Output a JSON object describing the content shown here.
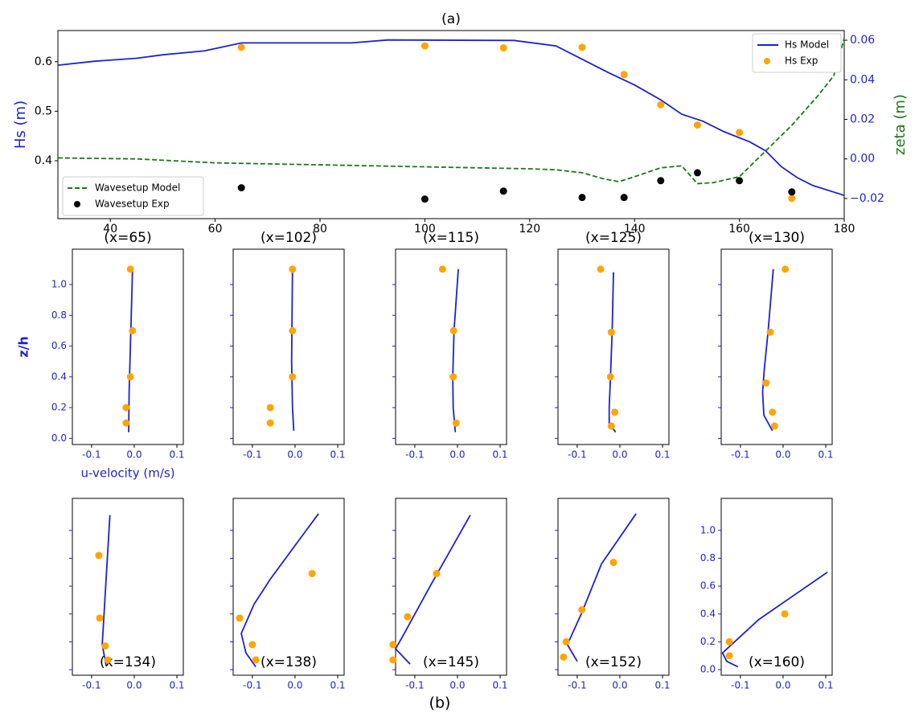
{
  "chart_data": [
    {
      "type": "line",
      "title": "(a)",
      "ylabel": "Hs (m)",
      "y2label": "zeta (m)",
      "xlim": [
        30,
        180
      ],
      "xticks": [
        40,
        60,
        80,
        100,
        120,
        140,
        160,
        180
      ],
      "ylim": [
        0.283,
        0.663
      ],
      "yticks": [
        0.4,
        0.5,
        0.6
      ],
      "y2lim": [
        -0.0302,
        0.0649
      ],
      "y2ticks": [
        {
          "value": -0.02,
          "label": "−0.02"
        },
        {
          "value": 0,
          "label": "0.00"
        },
        0.02,
        0.04,
        0.06
      ],
      "ylabel_color": "#1f1fd6",
      "y2label_color": "#1a7a1a",
      "series": [
        {
          "name": "Hs Model",
          "color": "#1f1fd6",
          "mode": "line",
          "legend": "upper right",
          "x": [
            30,
            37,
            45,
            50,
            58,
            65,
            86,
            93,
            117,
            125,
            130,
            135,
            140,
            145,
            149,
            153,
            157,
            162,
            165,
            168,
            171,
            174,
            180
          ],
          "values": [
            0.593,
            0.601,
            0.607,
            0.614,
            0.622,
            0.638,
            0.638,
            0.644,
            0.643,
            0.632,
            0.605,
            0.578,
            0.553,
            0.523,
            0.494,
            0.48,
            0.459,
            0.438,
            0.42,
            0.388,
            0.366,
            0.35,
            0.33
          ]
        },
        {
          "name": "Hs Exp",
          "color": "#ffa500",
          "mode": "dots",
          "legend": "upper right",
          "x": [
            65,
            100,
            115,
            130,
            138,
            145,
            152,
            160,
            170
          ],
          "values": [
            0.629,
            0.632,
            0.628,
            0.629,
            0.574,
            0.513,
            0.472,
            0.457,
            0.324
          ]
        },
        {
          "name": "Wavesetup Model",
          "color": "#1a7a1a",
          "mode": "dashed",
          "axis": "y2",
          "legend": "lower left",
          "x": [
            30,
            45,
            60,
            80,
            100,
            120,
            125,
            130,
            134,
            137,
            140,
            145,
            149,
            152,
            155,
            160,
            165,
            170,
            175,
            178,
            180
          ],
          "values": [
            0.0005,
            0,
            -0.002,
            -0.003,
            -0.004,
            -0.005,
            -0.0055,
            -0.007,
            -0.01,
            -0.0115,
            -0.009,
            -0.0045,
            -0.0035,
            -0.0125,
            -0.012,
            -0.009,
            0.004,
            0.017,
            0.032,
            0.042,
            0.061
          ]
        },
        {
          "name": "Wavesetup Exp",
          "color": "#000000",
          "mode": "dots",
          "axis": "y2",
          "legend": "lower left",
          "x": [
            65,
            100,
            115,
            130,
            138,
            145,
            152,
            160,
            170
          ],
          "values": [
            -0.0146,
            -0.0203,
            -0.0163,
            -0.0195,
            -0.0195,
            -0.011,
            -0.007,
            -0.011,
            -0.0167
          ]
        }
      ]
    },
    {
      "type": "line",
      "title": "(x=65)",
      "xlabel": "u-velocity (m/s)",
      "ylabel": "z/h",
      "show_ytick_labels": true,
      "xlim": [
        -0.145,
        0.115
      ],
      "xticks": [
        -0.1,
        {
          "value": 0,
          "label": "0.0"
        },
        0.1
      ],
      "ylim": [
        -0.04,
        1.23
      ],
      "yticks": [
        {
          "value": 0,
          "label": "0.0"
        },
        0.2,
        0.4,
        0.6,
        0.8,
        {
          "value": 1,
          "label": "1.0"
        }
      ],
      "series": [
        {
          "color": "#1f1fd6",
          "mode": "line",
          "x": [
            -0.013,
            -0.012,
            -0.008,
            -0.004
          ],
          "values": [
            0.04,
            0.3,
            0.7,
            1.1
          ]
        },
        {
          "color": "#ffa500",
          "mode": "dots",
          "x": [
            -0.009,
            -0.004,
            -0.009,
            -0.019,
            -0.019
          ],
          "values": [
            1.1,
            0.7,
            0.4,
            0.2,
            0.1
          ]
        }
      ]
    },
    {
      "type": "line",
      "title": "(x=102)",
      "xlim": [
        -0.145,
        0.115
      ],
      "xticks": [
        -0.1,
        {
          "value": 0,
          "label": "0.0"
        },
        0.1
      ],
      "ylim": [
        -0.04,
        1.23
      ],
      "yticks": [
        {
          "value": 0,
          "label": "0.0"
        },
        0.2,
        0.4,
        0.6,
        0.8,
        {
          "value": 1,
          "label": "1.0"
        }
      ],
      "series": [
        {
          "color": "#1f1fd6",
          "mode": "line",
          "x": [
            -0.003,
            -0.006,
            -0.008,
            -0.006
          ],
          "values": [
            0.05,
            0.2,
            0.5,
            1.1
          ]
        },
        {
          "color": "#ffa500",
          "mode": "dots",
          "x": [
            -0.006,
            -0.006,
            -0.006,
            -0.058,
            -0.058
          ],
          "values": [
            1.1,
            0.7,
            0.4,
            0.2,
            0.1
          ]
        }
      ]
    },
    {
      "type": "line",
      "title": "(x=115)",
      "xlim": [
        -0.145,
        0.115
      ],
      "xticks": [
        -0.1,
        {
          "value": 0,
          "label": "0.0"
        },
        0.1
      ],
      "ylim": [
        -0.04,
        1.23
      ],
      "yticks": [
        {
          "value": 0,
          "label": "0.0"
        },
        0.2,
        0.4,
        0.6,
        0.8,
        {
          "value": 1,
          "label": "1.0"
        }
      ],
      "series": [
        {
          "color": "#1f1fd6",
          "mode": "line",
          "x": [
            -0.005,
            -0.01,
            -0.011,
            -0.008,
            0.002
          ],
          "values": [
            0.04,
            0.2,
            0.4,
            0.7,
            1.1
          ]
        },
        {
          "color": "#ffa500",
          "mode": "dots",
          "x": [
            -0.035,
            -0.009,
            -0.01,
            -0.003
          ],
          "values": [
            1.1,
            0.7,
            0.4,
            0.1
          ]
        }
      ]
    },
    {
      "type": "line",
      "title": "(x=125)",
      "xlim": [
        -0.145,
        0.115
      ],
      "xticks": [
        -0.1,
        {
          "value": 0,
          "label": "0.0"
        },
        0.1
      ],
      "ylim": [
        -0.04,
        1.23
      ],
      "yticks": [
        {
          "value": 0,
          "label": "0.0"
        },
        0.2,
        0.4,
        0.6,
        0.8,
        {
          "value": 1,
          "label": "1.0"
        }
      ],
      "series": [
        {
          "color": "#1f1fd6",
          "mode": "line",
          "x": [
            -0.01,
            -0.025,
            -0.025,
            -0.022,
            -0.018,
            -0.015
          ],
          "values": [
            0.04,
            0.1,
            0.2,
            0.4,
            0.7,
            1.08
          ]
        },
        {
          "color": "#ffa500",
          "mode": "dots",
          "x": [
            -0.045,
            -0.02,
            -0.022,
            -0.012,
            -0.02
          ],
          "values": [
            1.1,
            0.69,
            0.4,
            0.17,
            0.08
          ]
        }
      ]
    },
    {
      "type": "line",
      "title": "(x=130)",
      "xlim": [
        -0.145,
        0.115
      ],
      "xticks": [
        -0.1,
        {
          "value": 0,
          "label": "0.0"
        },
        0.1
      ],
      "ylim": [
        -0.04,
        1.23
      ],
      "yticks": [
        {
          "value": 0,
          "label": "0.0"
        },
        0.2,
        0.4,
        0.6,
        0.8,
        {
          "value": 1,
          "label": "1.0"
        }
      ],
      "series": [
        {
          "color": "#1f1fd6",
          "mode": "line",
          "x": [
            -0.025,
            -0.045,
            -0.048,
            -0.044,
            -0.035,
            -0.023
          ],
          "values": [
            0.05,
            0.15,
            0.3,
            0.45,
            0.7,
            1.1
          ]
        },
        {
          "color": "#ffa500",
          "mode": "dots",
          "x": [
            0.005,
            -0.03,
            -0.04,
            -0.025,
            -0.02
          ],
          "values": [
            1.1,
            0.69,
            0.36,
            0.17,
            0.08
          ]
        }
      ]
    },
    {
      "type": "line",
      "title": "(x=134)",
      "title_position": "bottom",
      "xlim": [
        -0.145,
        0.115
      ],
      "xticks": [
        -0.1,
        {
          "value": 0,
          "label": "0.0"
        },
        0.1
      ],
      "ylim": [
        -0.04,
        1.23
      ],
      "yticks": [
        {
          "value": 0,
          "label": "0.0"
        },
        0.2,
        0.4,
        0.6,
        0.8,
        {
          "value": 1,
          "label": "1.0"
        }
      ],
      "series": [
        {
          "color": "#1f1fd6",
          "mode": "line",
          "x": [
            -0.066,
            -0.075,
            -0.057
          ],
          "values": [
            0.03,
            0.18,
            1.11
          ]
        },
        {
          "color": "#ffa500",
          "mode": "dots",
          "x": [
            -0.083,
            -0.081,
            -0.068,
            -0.062
          ],
          "values": [
            0.82,
            0.37,
            0.17,
            0.07
          ]
        }
      ]
    },
    {
      "type": "line",
      "title": "(x=138)",
      "title_position": "bottom",
      "xlim": [
        -0.145,
        0.115
      ],
      "xticks": [
        -0.1,
        {
          "value": 0,
          "label": "0.0"
        },
        0.1
      ],
      "ylim": [
        -0.04,
        1.23
      ],
      "yticks": [
        {
          "value": 0,
          "label": "0.0"
        },
        0.2,
        0.4,
        0.6,
        0.8,
        {
          "value": 1,
          "label": "1.0"
        }
      ],
      "series": [
        {
          "color": "#1f1fd6",
          "mode": "line",
          "x": [
            -0.092,
            -0.115,
            -0.126,
            -0.096,
            -0.058,
            0.055
          ],
          "values": [
            0.02,
            0.12,
            0.26,
            0.47,
            0.65,
            1.12
          ]
        },
        {
          "color": "#ffa500",
          "mode": "dots",
          "x": [
            0.04,
            -0.13,
            -0.1,
            -0.092
          ],
          "values": [
            0.69,
            0.37,
            0.18,
            0.07
          ]
        }
      ]
    },
    {
      "type": "line",
      "title": "(x=145)",
      "title_position": "bottom",
      "xlim": [
        -0.145,
        0.115
      ],
      "xticks": [
        -0.1,
        {
          "value": 0,
          "label": "0.0"
        },
        0.1
      ],
      "ylim": [
        -0.04,
        1.23
      ],
      "yticks": [
        {
          "value": 0,
          "label": "0.0"
        },
        0.2,
        0.4,
        0.6,
        0.8,
        {
          "value": 1,
          "label": "1.0"
        }
      ],
      "series": [
        {
          "color": "#1f1fd6",
          "mode": "line",
          "x": [
            -0.111,
            -0.145,
            -0.13,
            -0.064,
            0.03
          ],
          "values": [
            0.04,
            0.15,
            0.23,
            0.6,
            1.11
          ]
        },
        {
          "color": "#ffa500",
          "mode": "dots",
          "x": [
            -0.049,
            -0.117,
            -0.151,
            -0.151
          ],
          "values": [
            0.69,
            0.38,
            0.18,
            0.07
          ]
        }
      ]
    },
    {
      "type": "line",
      "title": "(x=152)",
      "title_position": "bottom",
      "xlim": [
        -0.145,
        0.115
      ],
      "xticks": [
        -0.1,
        {
          "value": 0,
          "label": "0.0"
        },
        0.1
      ],
      "ylim": [
        -0.04,
        1.23
      ],
      "yticks": [
        {
          "value": 0,
          "label": "0.0"
        },
        0.2,
        0.4,
        0.6,
        0.8,
        {
          "value": 1,
          "label": "1.0"
        }
      ],
      "series": [
        {
          "color": "#1f1fd6",
          "mode": "line",
          "x": [
            -0.1,
            -0.123,
            -0.089,
            -0.043,
            0.038
          ],
          "values": [
            0.06,
            0.18,
            0.41,
            0.76,
            1.12
          ]
        },
        {
          "color": "#ffa500",
          "mode": "dots",
          "x": [
            -0.015,
            -0.089,
            -0.126,
            -0.132
          ],
          "values": [
            0.77,
            0.43,
            0.2,
            0.09
          ]
        }
      ]
    },
    {
      "type": "line",
      "title": "(x=160)",
      "title_position": "bottom",
      "show_ytick_labels": true,
      "xlim": [
        -0.145,
        0.115
      ],
      "xticks": [
        -0.1,
        {
          "value": 0,
          "label": "0.0"
        },
        0.1
      ],
      "ylim": [
        -0.04,
        1.23
      ],
      "yticks": [
        {
          "value": 0,
          "label": "0.0"
        },
        0.2,
        0.4,
        0.6,
        0.8,
        {
          "value": 1,
          "label": "1.0"
        }
      ],
      "series": [
        {
          "color": "#1f1fd6",
          "mode": "line",
          "x": [
            -0.106,
            -0.132,
            -0.142,
            -0.057,
            0.104
          ],
          "values": [
            0.02,
            0.06,
            0.12,
            0.36,
            0.7
          ]
        },
        {
          "color": "#ffa500",
          "mode": "dots",
          "x": [
            0.004,
            -0.126,
            -0.126
          ],
          "values": [
            0.4,
            0.2,
            0.1
          ]
        }
      ]
    }
  ],
  "footer": "(b)"
}
